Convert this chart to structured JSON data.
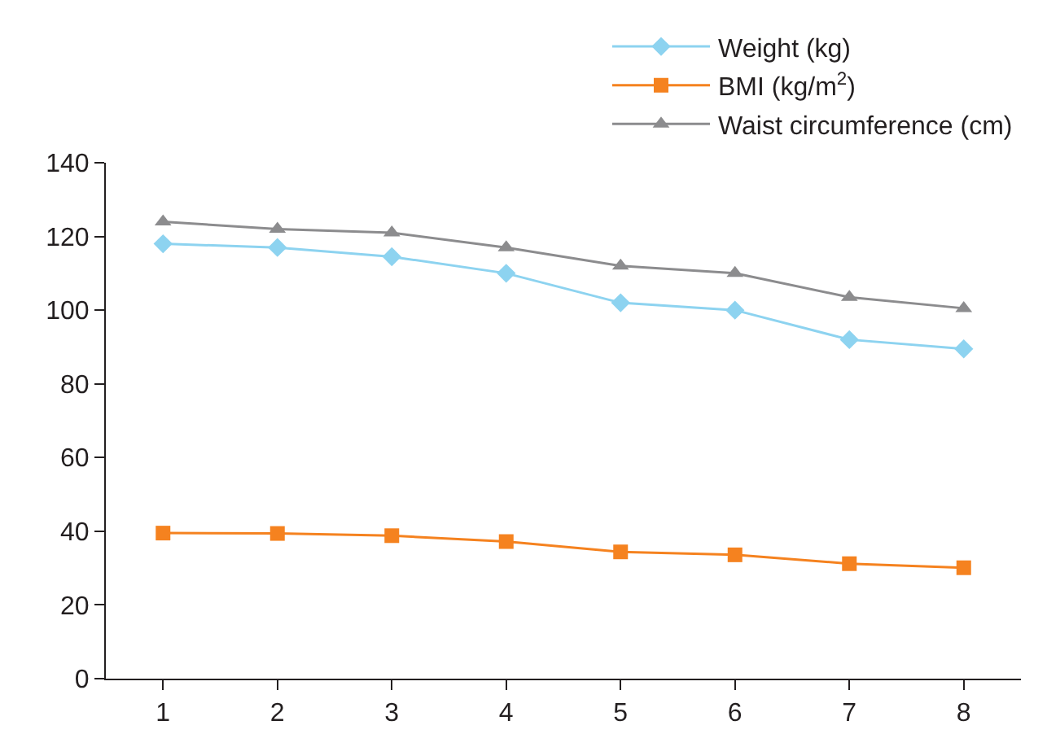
{
  "chart_data": {
    "type": "line",
    "x": [
      1,
      2,
      3,
      4,
      5,
      6,
      7,
      8
    ],
    "series": [
      {
        "name": "Weight (kg)",
        "color": "#8dd3f0",
        "marker": "diamond",
        "values": [
          118,
          117,
          114.5,
          110,
          102,
          100,
          92,
          89.5
        ]
      },
      {
        "name": "BMI (kg/m$^{2}$)",
        "color": "#f5821f",
        "marker": "square",
        "values": [
          39.5,
          39.4,
          38.8,
          37.2,
          34.4,
          33.6,
          31.2,
          30.1
        ]
      },
      {
        "name": "Waist circumference (cm)",
        "color": "#8c8c8e",
        "marker": "triangle",
        "values": [
          124,
          122,
          121,
          117,
          112,
          110,
          103.5,
          100.5
        ]
      }
    ],
    "xlim": [
      0.5,
      8.5
    ],
    "xticks": [
      1,
      2,
      3,
      4,
      5,
      6,
      7,
      8
    ],
    "ylim": [
      0,
      140
    ],
    "yticks": [
      0,
      20,
      40,
      60,
      80,
      100,
      120,
      140
    ],
    "grid": false,
    "legend": "top right",
    "line_style": "solid"
  }
}
